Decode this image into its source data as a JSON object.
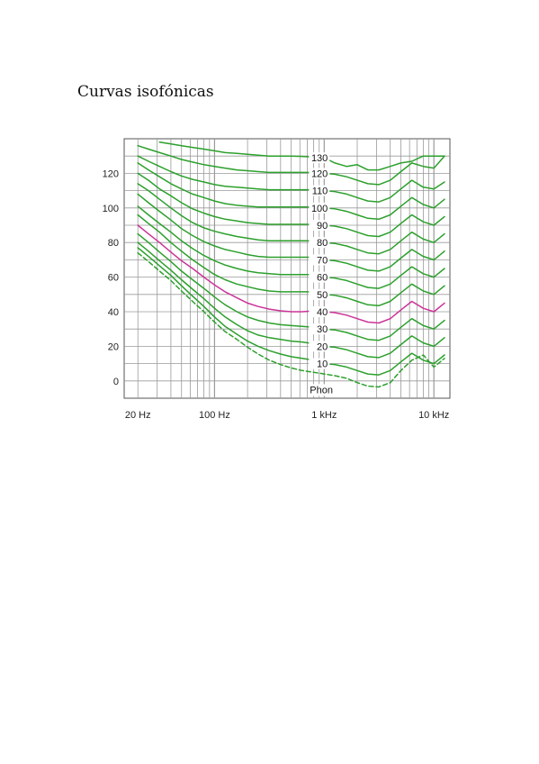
{
  "page": {
    "title": "Curvas isofónicas"
  },
  "chart_data": {
    "type": "line",
    "title": "",
    "xlabel": "",
    "ylabel": "",
    "x_scale": "log",
    "xlim": [
      15,
      14000
    ],
    "ylim": [
      -10,
      140
    ],
    "grid": true,
    "x_tick_labels": [
      {
        "f": 20,
        "label": "20 Hz"
      },
      {
        "f": 100,
        "label": "100 Hz"
      },
      {
        "f": 1000,
        "label": "1 kHz"
      },
      {
        "f": 10000,
        "label": "10 kHz"
      }
    ],
    "y_ticks": [
      0,
      20,
      40,
      60,
      80,
      100,
      120
    ],
    "unit_label": "Phon",
    "colors": {
      "curve": "#2ca02c",
      "highlight": "#cc3399",
      "grid": "#9a9a9a"
    },
    "highlight_label": "40",
    "x": [
      20,
      25,
      31.5,
      40,
      50,
      63,
      80,
      100,
      125,
      160,
      200,
      250,
      315,
      400,
      500,
      630,
      800,
      1000,
      1250,
      1600,
      2000,
      2500,
      3150,
      4000,
      5000,
      6300,
      8000,
      10000,
      12500
    ],
    "series": [
      {
        "label": "130",
        "values": [
          null,
          null,
          138,
          137,
          136,
          135,
          134,
          133,
          132,
          131.5,
          131,
          130.5,
          130,
          130,
          130,
          129.8,
          129.5,
          129,
          126,
          124,
          125,
          122,
          122,
          124,
          126,
          127,
          130,
          130,
          130
        ]
      },
      {
        "label": "120",
        "values": [
          136,
          134,
          132,
          130,
          128,
          126.5,
          125,
          124,
          123,
          122,
          121.5,
          121,
          120.5,
          120.5,
          120.5,
          120.5,
          120.5,
          120,
          119.5,
          118,
          116,
          114,
          113.5,
          116,
          121,
          126,
          124,
          123,
          130
        ]
      },
      {
        "label": "110",
        "values": [
          130,
          127,
          124,
          121,
          118.5,
          116.5,
          115,
          113.5,
          112.5,
          112,
          111.5,
          111,
          110.5,
          110.5,
          110.5,
          110.5,
          110.5,
          110,
          109.5,
          108,
          106,
          104,
          103.5,
          106,
          111,
          116,
          112,
          111,
          115
        ]
      },
      {
        "label": "100",
        "values": [
          126,
          122,
          118,
          114,
          111,
          108,
          106,
          104,
          102.5,
          101.5,
          101,
          100.5,
          100.5,
          100.5,
          100.5,
          100.5,
          100.5,
          100,
          99.5,
          98,
          96,
          94,
          93.5,
          96,
          101,
          106,
          102,
          100,
          105
        ]
      },
      {
        "label": "90",
        "values": [
          120,
          116,
          111,
          107,
          103,
          99.5,
          97,
          95,
          93.5,
          92.5,
          91.5,
          91,
          90.5,
          90.5,
          90.5,
          90.5,
          90.5,
          90,
          89.5,
          88,
          86,
          84,
          83.5,
          86,
          91,
          96,
          92,
          90,
          95
        ]
      },
      {
        "label": "80",
        "values": [
          114,
          110,
          105,
          100,
          95.5,
          91.5,
          88.5,
          86.5,
          85,
          83.5,
          82.5,
          81.5,
          81,
          81,
          81,
          81,
          81,
          80,
          79.5,
          78,
          76,
          74,
          73.5,
          76,
          81,
          86,
          82,
          80,
          85
        ]
      },
      {
        "label": "70",
        "values": [
          108,
          103,
          98,
          93,
          88,
          84,
          80.5,
          78,
          76,
          74.5,
          73,
          72,
          71.5,
          71.5,
          71.5,
          71.5,
          71.5,
          70,
          69.5,
          68,
          66,
          64,
          63.5,
          66,
          71,
          76,
          72,
          70,
          75
        ]
      },
      {
        "label": "60",
        "values": [
          101,
          96,
          91,
          86,
          81,
          76.5,
          72.5,
          69.5,
          67,
          65,
          63.5,
          62.5,
          62,
          61.5,
          61.5,
          61.5,
          61.5,
          60,
          59.5,
          58,
          56,
          54,
          53.5,
          56,
          61,
          66,
          62,
          60,
          65
        ]
      },
      {
        "label": "50",
        "values": [
          96,
          91,
          86,
          80,
          75,
          70,
          65.5,
          61.5,
          58.5,
          56,
          54.5,
          53,
          52,
          51.5,
          51.5,
          51.5,
          51.5,
          50,
          49.5,
          48,
          46,
          44,
          43.5,
          46,
          51,
          56,
          52,
          50,
          55
        ]
      },
      {
        "label": "40",
        "values": [
          90,
          85,
          80,
          74.5,
          69.5,
          65,
          60,
          55.5,
          51.5,
          48,
          45,
          43,
          41.5,
          40.5,
          40,
          40,
          40.5,
          40,
          39.5,
          38,
          36,
          34,
          33.5,
          36,
          41,
          46,
          42,
          40,
          45
        ]
      },
      {
        "label": "30",
        "values": [
          85,
          80,
          74.5,
          69,
          63.5,
          58.5,
          53.5,
          48.5,
          44,
          40,
          37,
          35,
          33.5,
          32.5,
          32,
          31.5,
          31,
          30,
          29.5,
          28,
          26,
          24,
          23.5,
          26,
          31,
          36,
          32,
          30,
          35
        ]
      },
      {
        "label": "20",
        "values": [
          80,
          75,
          69.5,
          64,
          58.5,
          53,
          47.5,
          42,
          37,
          32.5,
          29,
          26.5,
          25,
          24,
          23,
          22.5,
          21.5,
          20,
          19.5,
          18,
          16,
          14,
          13.5,
          16,
          21,
          26,
          22,
          20,
          25
        ]
      },
      {
        "label": "10",
        "values": [
          77,
          72,
          66.5,
          61,
          55,
          49,
          43,
          37,
          31.5,
          27,
          23,
          20,
          17.5,
          15.5,
          14,
          13,
          12,
          10,
          9.5,
          8,
          6,
          4,
          3.5,
          6,
          11,
          16,
          12,
          10,
          15
        ]
      },
      {
        "label": "",
        "dashed": true,
        "values": [
          74,
          69,
          63.5,
          58,
          52,
          46,
          40,
          34,
          28.5,
          24,
          19.5,
          15.5,
          12,
          9.5,
          7.5,
          6,
          5,
          4,
          3,
          1.5,
          -1,
          -3,
          -3.5,
          -1,
          6,
          12,
          15,
          8,
          13
        ]
      }
    ]
  }
}
